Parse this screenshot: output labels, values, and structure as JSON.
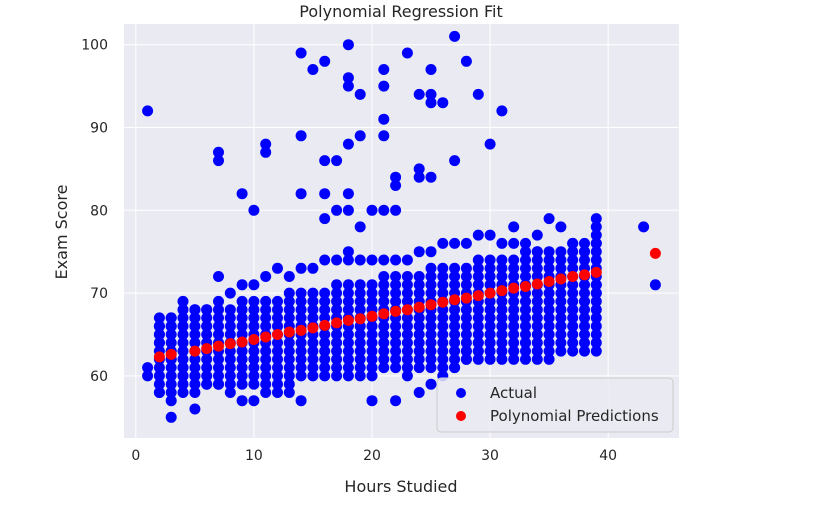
{
  "chart_data": {
    "type": "scatter",
    "title": "Polynomial Regression Fit",
    "xlabel": "Hours Studied",
    "ylabel": "Exam Score",
    "xlim": [
      -1,
      46
    ],
    "ylim": [
      52.5,
      102.5
    ],
    "xticks": [
      0,
      10,
      20,
      30,
      40
    ],
    "yticks": [
      60,
      70,
      80,
      90,
      100
    ],
    "grid": true,
    "legend_position": "lower-right",
    "colors": {
      "background": "#eaeaf2",
      "grid": "#ffffff",
      "actual": "#0000ff",
      "predicted": "#ff0000"
    },
    "series": [
      {
        "name": "Actual",
        "color": "#0000ff",
        "points": [
          [
            1,
            92
          ],
          [
            14,
            99
          ],
          [
            15,
            97
          ],
          [
            16,
            98
          ],
          [
            18,
            100
          ],
          [
            18,
            96
          ],
          [
            18,
            95
          ],
          [
            19,
            94
          ],
          [
            21,
            97
          ],
          [
            21,
            95
          ],
          [
            23,
            99
          ],
          [
            24,
            94
          ],
          [
            25,
            97
          ],
          [
            25,
            94
          ],
          [
            25,
            93
          ],
          [
            26,
            93
          ],
          [
            27,
            101
          ],
          [
            28,
            98
          ],
          [
            29,
            94
          ],
          [
            31,
            92
          ],
          [
            7,
            87
          ],
          [
            7,
            86
          ],
          [
            11,
            88
          ],
          [
            11,
            87
          ],
          [
            14,
            89
          ],
          [
            16,
            86
          ],
          [
            17,
            86
          ],
          [
            18,
            88
          ],
          [
            19,
            89
          ],
          [
            21,
            91
          ],
          [
            21,
            89
          ],
          [
            24,
            85
          ],
          [
            24,
            84
          ],
          [
            25,
            84
          ],
          [
            27,
            86
          ],
          [
            30,
            88
          ],
          [
            9,
            82
          ],
          [
            10,
            80
          ],
          [
            14,
            82
          ],
          [
            16,
            82
          ],
          [
            16,
            79
          ],
          [
            17,
            80
          ],
          [
            18,
            82
          ],
          [
            18,
            80
          ],
          [
            19,
            78
          ],
          [
            20,
            80
          ],
          [
            21,
            80
          ],
          [
            22,
            80
          ],
          [
            22,
            83
          ],
          [
            22,
            84
          ],
          [
            43,
            78
          ],
          [
            44,
            71
          ],
          [
            1,
            61
          ],
          [
            1,
            60
          ],
          [
            2,
            58
          ],
          [
            3,
            57
          ],
          [
            3,
            55
          ],
          [
            5,
            56
          ],
          [
            7,
            72
          ],
          [
            12,
            73
          ],
          [
            32,
            78
          ],
          [
            34,
            77
          ],
          [
            35,
            79
          ],
          [
            36,
            78
          ],
          [
            37,
            76
          ],
          [
            38,
            75
          ],
          [
            39,
            79
          ],
          [
            39,
            78
          ],
          [
            39,
            77
          ],
          [
            39,
            76
          ],
          [
            39,
            71
          ],
          [
            39,
            70
          ],
          [
            38,
            69
          ],
          [
            37,
            68
          ],
          [
            36,
            66
          ],
          [
            35,
            65
          ],
          [
            33,
            64
          ],
          [
            32,
            63
          ],
          [
            20,
            57
          ],
          [
            22,
            57
          ],
          [
            23,
            60
          ],
          [
            23,
            61
          ],
          [
            24,
            58
          ],
          [
            25,
            59
          ],
          [
            26,
            60
          ],
          [
            27,
            61
          ],
          [
            28,
            62
          ],
          [
            28,
            63
          ],
          [
            29,
            64
          ],
          [
            29,
            63
          ],
          [
            30,
            64
          ],
          [
            30,
            65
          ],
          [
            31,
            65
          ],
          [
            31,
            66
          ],
          [
            14,
            57
          ],
          [
            13,
            58
          ],
          [
            12,
            58
          ],
          [
            11,
            58
          ],
          [
            10,
            57
          ],
          [
            9,
            57
          ],
          [
            8,
            58
          ],
          [
            7,
            59
          ],
          [
            6,
            59
          ],
          [
            5,
            60
          ],
          [
            4,
            60
          ],
          [
            4,
            61
          ],
          [
            3,
            62
          ],
          [
            3,
            63
          ],
          [
            2,
            64
          ],
          [
            2,
            65
          ],
          [
            2,
            66
          ],
          [
            3,
            66
          ],
          [
            3,
            67
          ],
          [
            4,
            68
          ],
          [
            4,
            69
          ],
          [
            5,
            67
          ],
          [
            5,
            68
          ],
          [
            6,
            68
          ],
          [
            6,
            66
          ],
          [
            7,
            69
          ],
          [
            8,
            70
          ],
          [
            9,
            71
          ],
          [
            10,
            71
          ],
          [
            11,
            72
          ],
          [
            13,
            72
          ],
          [
            14,
            73
          ],
          [
            15,
            73
          ],
          [
            16,
            74
          ],
          [
            17,
            74
          ],
          [
            18,
            74
          ],
          [
            18,
            75
          ],
          [
            19,
            74
          ],
          [
            20,
            74
          ],
          [
            21,
            74
          ],
          [
            22,
            74
          ],
          [
            23,
            74
          ],
          [
            24,
            75
          ],
          [
            25,
            75
          ],
          [
            26,
            76
          ],
          [
            27,
            76
          ],
          [
            28,
            76
          ],
          [
            29,
            77
          ],
          [
            30,
            77
          ],
          [
            31,
            76
          ],
          [
            32,
            76
          ],
          [
            33,
            76
          ],
          [
            34,
            75
          ]
        ]
      },
      {
        "name": "Polynomial Predictions",
        "color": "#ff0000",
        "points": [
          [
            2,
            62.3
          ],
          [
            3,
            62.6
          ],
          [
            5,
            63.0
          ],
          [
            6,
            63.3
          ],
          [
            7,
            63.6
          ],
          [
            8,
            63.9
          ],
          [
            9,
            64.1
          ],
          [
            10,
            64.4
          ],
          [
            11,
            64.7
          ],
          [
            12,
            65.0
          ],
          [
            13,
            65.3
          ],
          [
            14,
            65.5
          ],
          [
            15,
            65.8
          ],
          [
            16,
            66.1
          ],
          [
            17,
            66.4
          ],
          [
            18,
            66.7
          ],
          [
            19,
            66.9
          ],
          [
            20,
            67.2
          ],
          [
            21,
            67.5
          ],
          [
            22,
            67.8
          ],
          [
            23,
            68.0
          ],
          [
            24,
            68.3
          ],
          [
            25,
            68.6
          ],
          [
            26,
            68.9
          ],
          [
            27,
            69.2
          ],
          [
            28,
            69.4
          ],
          [
            29,
            69.7
          ],
          [
            30,
            70.0
          ],
          [
            31,
            70.3
          ],
          [
            32,
            70.6
          ],
          [
            33,
            70.8
          ],
          [
            34,
            71.1
          ],
          [
            35,
            71.4
          ],
          [
            36,
            71.7
          ],
          [
            37,
            72.0
          ],
          [
            38,
            72.2
          ],
          [
            39,
            72.5
          ],
          [
            44,
            74.8
          ]
        ]
      }
    ],
    "dense_band": {
      "x_from": 2,
      "x_to": 39,
      "lower_start": 58,
      "lower_end": 63,
      "upper_start": 67,
      "upper_end": 76
    }
  }
}
